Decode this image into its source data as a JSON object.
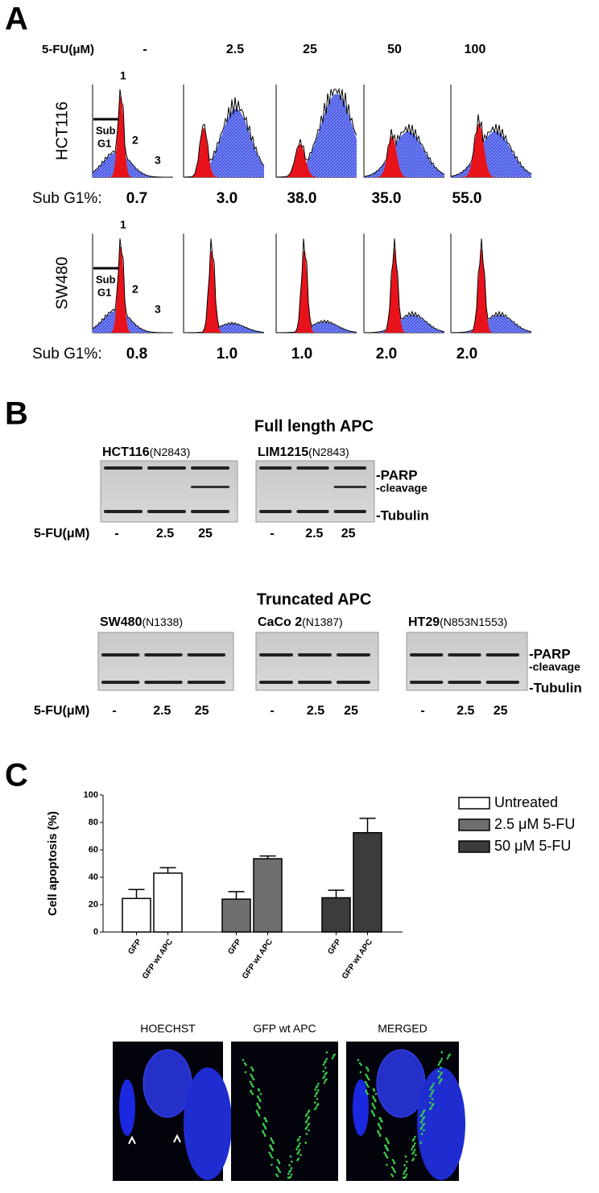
{
  "panel_a": {
    "label": "A",
    "treatment_label": "5-FU(μM)",
    "doses": [
      "-",
      "2.5",
      "25",
      "50",
      "100"
    ],
    "rows": [
      {
        "cell_line": "HCT116",
        "subg1_label": "Sub G1%:",
        "subg1": [
          "0.7",
          "3.0",
          "38.0",
          "35.0",
          "55.0"
        ],
        "peak_labels": [
          "1",
          "2",
          "3"
        ],
        "gate_label": [
          "Sub",
          "G1"
        ]
      },
      {
        "cell_line": "SW480",
        "subg1_label": "Sub G1%:",
        "subg1": [
          "0.8",
          "1.0",
          "1.0",
          "2.0",
          "2.0"
        ],
        "peak_labels": [
          "1",
          "2",
          "3"
        ],
        "gate_label": [
          "Sub",
          "G1"
        ]
      }
    ]
  },
  "panel_b": {
    "label": "B",
    "treatment_label": "5-FU(μM)",
    "lanes": [
      "-",
      "2.5",
      "25"
    ],
    "band_labels": [
      "-PARP",
      "-cleavage",
      "-Tubulin"
    ],
    "groups": [
      {
        "title": "Full length APC",
        "blots": [
          {
            "cell_line": "HCT116",
            "apc": "(N2843)"
          },
          {
            "cell_line": "LIM1215",
            "apc": "(N2843)"
          }
        ]
      },
      {
        "title": "Truncated APC",
        "blots": [
          {
            "cell_line": "SW480",
            "apc": "(N1338)"
          },
          {
            "cell_line": "CaCo 2",
            "apc": "(N1387)"
          },
          {
            "cell_line": "HT29",
            "apc": "(N853N1553)"
          }
        ]
      }
    ]
  },
  "panel_c": {
    "label": "C",
    "chart_data": {
      "type": "bar",
      "y_label": "Cell apoptosis (%)",
      "categories": [
        "GFP",
        "GFP wt APC",
        "GFP",
        "GFP wt APC",
        "GFP",
        "GFP wt APC"
      ],
      "series": [
        {
          "name": "Untreated",
          "color": "#ffffff",
          "values": [
            24.5,
            43,
            null,
            null,
            null,
            null
          ],
          "errors": [
            6.5,
            4,
            null,
            null,
            null,
            null
          ]
        },
        {
          "name": "2.5 μM 5-FU",
          "color": "#6e6e6e",
          "values": [
            null,
            null,
            24,
            53.5,
            null,
            null
          ],
          "errors": [
            null,
            null,
            5.5,
            2,
            null,
            null
          ]
        },
        {
          "name": "50 μM 5-FU",
          "color": "#3c3c3c",
          "values": [
            null,
            null,
            null,
            null,
            25,
            72.5
          ],
          "errors": [
            null,
            null,
            null,
            null,
            5.5,
            10.5
          ]
        }
      ],
      "ylim": [
        0,
        100
      ],
      "yticks": [
        0,
        20,
        40,
        60,
        80,
        100
      ]
    },
    "image_labels": [
      "HOECHST",
      "GFP  wt APC",
      "MERGED"
    ]
  }
}
